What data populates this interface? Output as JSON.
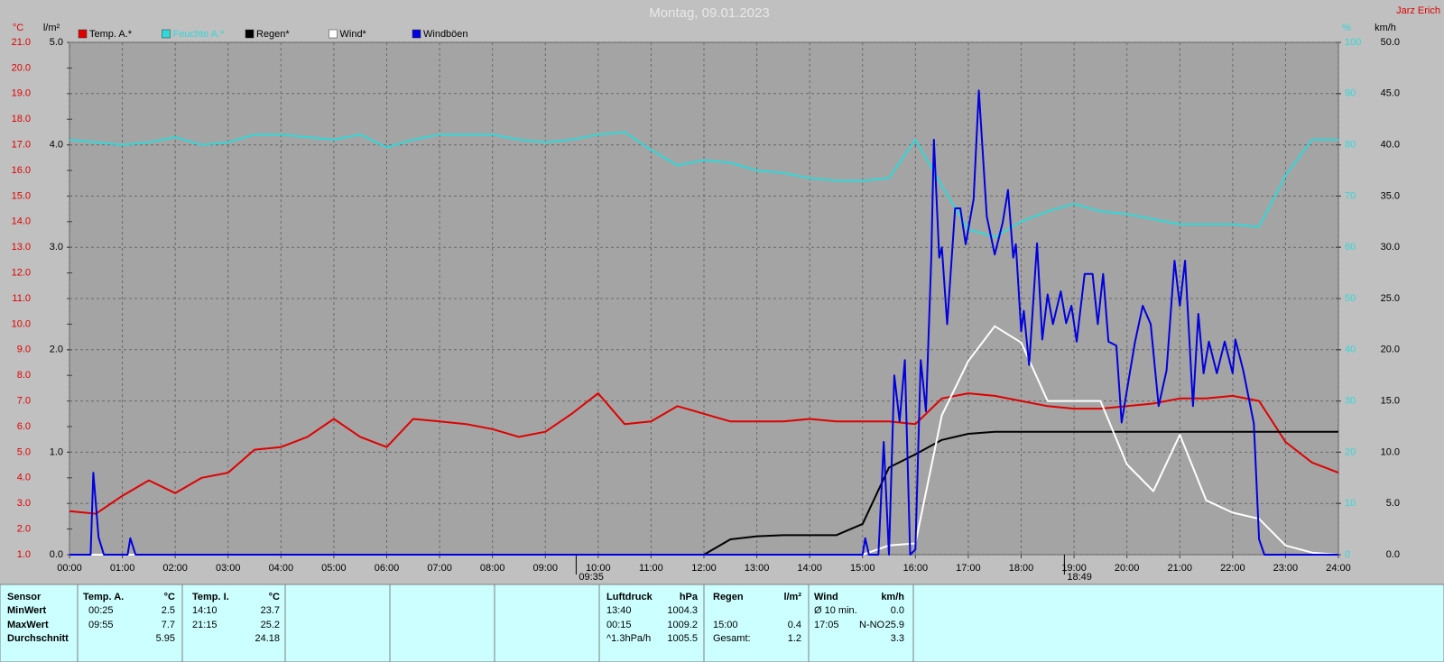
{
  "chart_data": {
    "type": "line",
    "title": "Montag, 09.01.2023",
    "author": "Jarz Erich",
    "ylabel": "°C",
    "y2label": "l/m²",
    "y3label": "%",
    "y4label": "km/h",
    "grid": true,
    "xlim": [
      0,
      24
    ],
    "xticks": [
      {
        "value": 0,
        "label": "00:00"
      },
      {
        "value": 1,
        "label": "01:00"
      },
      {
        "value": 2,
        "label": "02:00"
      },
      {
        "value": 3,
        "label": "03:00"
      },
      {
        "value": 4,
        "label": "04:00"
      },
      {
        "value": 5,
        "label": "05:00"
      },
      {
        "value": 6,
        "label": "06:00"
      },
      {
        "value": 7,
        "label": "07:00"
      },
      {
        "value": 8,
        "label": "08:00"
      },
      {
        "value": 9,
        "label": "09:00"
      },
      {
        "value": 10,
        "label": "10:00"
      },
      {
        "value": 11,
        "label": "11:00"
      },
      {
        "value": 12,
        "label": "12:00"
      },
      {
        "value": 13,
        "label": "13:00"
      },
      {
        "value": 14,
        "label": "14:00"
      },
      {
        "value": 15,
        "label": "15:00"
      },
      {
        "value": 16,
        "label": "16:00"
      },
      {
        "value": 17,
        "label": "17:00"
      },
      {
        "value": 18,
        "label": "18:00"
      },
      {
        "value": 19,
        "label": "19:00"
      },
      {
        "value": 20,
        "label": "20:00"
      },
      {
        "value": 21,
        "label": "21:00"
      },
      {
        "value": 22,
        "label": "22:00"
      },
      {
        "value": 23,
        "label": "23:00"
      },
      {
        "value": 24,
        "label": "24:00"
      }
    ],
    "ylim": [
      1,
      21
    ],
    "yticks": [
      {
        "value": 1,
        "label": "1.0"
      },
      {
        "value": 2,
        "label": "2.0"
      },
      {
        "value": 3,
        "label": "3.0"
      },
      {
        "value": 4,
        "label": "4.0"
      },
      {
        "value": 5,
        "label": "5.0"
      },
      {
        "value": 6,
        "label": "6.0"
      },
      {
        "value": 7,
        "label": "7.0"
      },
      {
        "value": 8,
        "label": "8.0"
      },
      {
        "value": 9,
        "label": "9.0"
      },
      {
        "value": 10,
        "label": "10.0"
      },
      {
        "value": 11,
        "label": "11.0"
      },
      {
        "value": 12,
        "label": "12.0"
      },
      {
        "value": 13,
        "label": "13.0"
      },
      {
        "value": 14,
        "label": "14.0"
      },
      {
        "value": 15,
        "label": "15.0"
      },
      {
        "value": 16,
        "label": "16.0"
      },
      {
        "value": 17,
        "label": "17.0"
      },
      {
        "value": 18,
        "label": "18.0"
      },
      {
        "value": 19,
        "label": "19.0"
      },
      {
        "value": 20,
        "label": "20.0"
      },
      {
        "value": 21,
        "label": "21.0"
      }
    ],
    "y2lim": [
      0,
      5
    ],
    "y2ticks": [
      {
        "value": 0,
        "label": "0.0"
      },
      {
        "value": 1,
        "label": "1.0"
      },
      {
        "value": 2,
        "label": "2.0"
      },
      {
        "value": 3,
        "label": "3.0"
      },
      {
        "value": 4,
        "label": "4.0"
      },
      {
        "value": 5,
        "label": "5.0"
      }
    ],
    "y3lim": [
      0,
      100
    ],
    "y3ticks": [
      0,
      10,
      20,
      30,
      40,
      50,
      60,
      70,
      80,
      90,
      100
    ],
    "y4lim": [
      0,
      50
    ],
    "y4ticks": [
      {
        "value": 0,
        "label": "0.0"
      },
      {
        "value": 5,
        "label": "5.0"
      },
      {
        "value": 10,
        "label": "10.0"
      },
      {
        "value": 15,
        "label": "15.0"
      },
      {
        "value": 20,
        "label": "20.0"
      },
      {
        "value": 25,
        "label": "25.0"
      },
      {
        "value": 30,
        "label": "30.0"
      },
      {
        "value": 35,
        "label": "35.0"
      },
      {
        "value": 40,
        "label": "40.0"
      },
      {
        "value": 45,
        "label": "45.0"
      },
      {
        "value": 50,
        "label": "50.0"
      }
    ],
    "x": [
      0,
      0.5,
      1,
      1.5,
      2,
      2.5,
      3,
      3.5,
      4,
      4.5,
      5,
      5.5,
      6,
      6.5,
      7,
      7.5,
      8,
      8.5,
      9,
      9.5,
      10,
      10.5,
      11,
      11.5,
      12,
      12.5,
      13,
      13.5,
      14,
      14.5,
      15,
      15.5,
      16,
      16.5,
      17,
      17.5,
      18,
      18.5,
      19,
      19.5,
      20,
      20.5,
      21,
      21.5,
      22,
      22.5,
      23,
      23.5,
      24
    ],
    "annotations": [
      {
        "x": 9.583,
        "label": "09:35"
      },
      {
        "x": 18.817,
        "label": "18:49"
      }
    ],
    "series": [
      {
        "name": "Temp. A.*",
        "color": "#e00000",
        "axis": "y",
        "values": [
          2.7,
          2.6,
          3.3,
          3.9,
          3.4,
          4.0,
          4.2,
          5.1,
          5.2,
          5.6,
          6.3,
          5.6,
          5.2,
          6.3,
          6.2,
          6.1,
          5.9,
          5.6,
          5.8,
          6.5,
          7.3,
          6.1,
          6.2,
          6.8,
          6.5,
          6.2,
          6.2,
          6.2,
          6.3,
          6.2,
          6.2,
          6.2,
          6.1,
          7.1,
          7.3,
          7.2,
          7.0,
          6.8,
          6.7,
          6.7,
          6.8,
          6.9,
          7.1,
          7.1,
          7.2,
          7.0,
          5.4,
          4.6,
          4.2
        ]
      },
      {
        "name": "Feuchte A.*",
        "color": "#30d8d8",
        "axis": "y3",
        "values": [
          81,
          80.5,
          80,
          80.5,
          81.5,
          80,
          80.5,
          82,
          82,
          81.5,
          81,
          82,
          79.5,
          81,
          82,
          82,
          82,
          81,
          80.5,
          81,
          82,
          82.5,
          79,
          76,
          77,
          76.5,
          75,
          74.5,
          73.5,
          73,
          73,
          73.5,
          81,
          72,
          63.5,
          62,
          65,
          67,
          68.5,
          67,
          66.5,
          65.5,
          64.5,
          64.5,
          64.5,
          64,
          74,
          81,
          81
        ]
      },
      {
        "name": "Regen*",
        "color": "#000000",
        "axis": "y2",
        "values": [
          0,
          0,
          0,
          0,
          0,
          0,
          0,
          0,
          0,
          0,
          0,
          0,
          0,
          0,
          0,
          0,
          0,
          0,
          0,
          0,
          0,
          0,
          0,
          0,
          0,
          0.15,
          0.18,
          0.19,
          0.19,
          0.19,
          0.3,
          0.85,
          0.98,
          1.12,
          1.18,
          1.2,
          1.2,
          1.2,
          1.2,
          1.2,
          1.2,
          1.2,
          1.2,
          1.2,
          1.2,
          1.2,
          1.2,
          1.2,
          1.2
        ]
      },
      {
        "name": "Wind*",
        "color": "#ffffff",
        "axis": "y4",
        "values": [
          0,
          0,
          0,
          0,
          0,
          0,
          0,
          0,
          0,
          0,
          0,
          0,
          0,
          0,
          0,
          0,
          0,
          0,
          0,
          0,
          0,
          0,
          0,
          0,
          0,
          0,
          0,
          0,
          0,
          0,
          0,
          0.9,
          1.1,
          13.6,
          18.9,
          22.3,
          20.7,
          15,
          15,
          15,
          8.8,
          6.2,
          11.7,
          5.3,
          4.1,
          3.5,
          0.9,
          0.2,
          0
        ]
      },
      {
        "name": "Windböen",
        "color": "#0000e0",
        "axis": "y4",
        "x": [
          0,
          0.4,
          0.45,
          0.55,
          0.65,
          1.1,
          1.15,
          1.25,
          15,
          15.05,
          15.12,
          15.3,
          15.4,
          15.5,
          15.6,
          15.7,
          15.8,
          15.9,
          16,
          16.1,
          16.2,
          16.3,
          16.35,
          16.45,
          16.5,
          16.6,
          16.75,
          16.85,
          16.95,
          17.1,
          17.2,
          17.35,
          17.5,
          17.65,
          17.75,
          17.85,
          17.9,
          18,
          18.05,
          18.15,
          18.3,
          18.4,
          18.5,
          18.6,
          18.75,
          18.85,
          18.95,
          19.05,
          19.2,
          19.35,
          19.45,
          19.55,
          19.65,
          19.8,
          19.9,
          20.05,
          20.15,
          20.3,
          20.45,
          20.6,
          20.75,
          20.9,
          21,
          21.1,
          21.25,
          21.35,
          21.45,
          21.55,
          21.7,
          21.85,
          22,
          22.05,
          22.2,
          22.4,
          22.5,
          22.6,
          24
        ],
        "values": [
          0,
          0,
          8,
          1.7,
          0,
          0,
          1.6,
          0,
          0,
          1.6,
          0,
          0,
          11,
          0,
          17.5,
          13,
          19,
          0,
          0.5,
          19,
          14,
          29,
          40.5,
          29,
          30,
          22.5,
          33.8,
          33.8,
          30.3,
          34.7,
          45.3,
          33,
          29.3,
          32.4,
          35.6,
          29,
          30.3,
          21.8,
          23.8,
          18.5,
          30.4,
          21,
          25.4,
          22.5,
          25.7,
          22.6,
          24.3,
          20.8,
          27.4,
          27.4,
          22.5,
          27.4,
          20.8,
          20.4,
          12.9,
          17.6,
          20.7,
          24.3,
          22.5,
          14.5,
          18,
          28.7,
          24.3,
          28.7,
          14.5,
          23.5,
          17.7,
          20.8,
          17.7,
          20.8,
          17.7,
          21,
          18,
          12.8,
          1.5,
          0,
          0
        ]
      }
    ]
  },
  "table": {
    "rows": [
      [
        "Sensor",
        "Temp. A.",
        "°C",
        "Temp. I.",
        "°C",
        "Luftdruck",
        "hPa",
        "Regen",
        "l/m²",
        "Wind",
        null,
        "km/h"
      ],
      [
        "MinWert",
        "00:25",
        "2.5",
        "14:10",
        "23.7",
        "13:40",
        "1004.3",
        null,
        null,
        "Ø 10 min.",
        null,
        "0.0"
      ],
      [
        "MaxWert",
        "09:55",
        "7.7",
        "21:15",
        "25.2",
        "00:15",
        "1009.2",
        "15:00",
        "0.4",
        "17:05",
        "N-NO",
        "25.9"
      ],
      [
        "Durchschnitt",
        null,
        "5.95",
        null,
        "24.18",
        "^1.3hPa/h",
        "1005.5",
        "Gesamt:",
        "1.2",
        null,
        null,
        "3.3"
      ]
    ]
  }
}
